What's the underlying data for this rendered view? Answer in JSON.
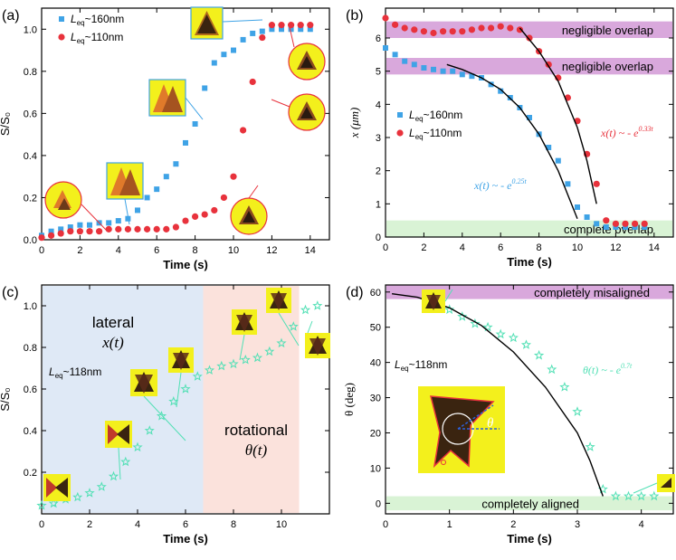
{
  "chart_data": [
    {
      "panel": "(a)",
      "type": "scatter",
      "xlabel": "Time (s)",
      "ylabel": "S/S0",
      "xlim": [
        0,
        15
      ],
      "ylim": [
        0,
        1.1
      ],
      "xticks": [
        0,
        2,
        4,
        6,
        8,
        10,
        12,
        14
      ],
      "yticks": [
        0.0,
        0.2,
        0.4,
        0.6,
        0.8,
        1.0
      ],
      "xtick_labels": [
        "0",
        "2",
        "4",
        "6",
        "8",
        "10",
        "12",
        "14"
      ],
      "ytick_labels": [
        "0.0",
        "0.2",
        "0.4",
        "0.6",
        "0.8",
        "1.0"
      ],
      "legend": [
        {
          "text": "L",
          "sub": "eq",
          "rest": "~160nm",
          "color": "#3fa3e6",
          "marker": "square"
        },
        {
          "text": "L",
          "sub": "eq",
          "rest": "~110nm",
          "color": "#e8323c",
          "marker": "circle"
        }
      ],
      "series": [
        {
          "name": "Leq~160nm",
          "color": "#3fa3e6",
          "marker": "square",
          "x": [
            0.0,
            0.5,
            1.0,
            1.5,
            2.0,
            2.5,
            3.0,
            3.5,
            4.0,
            4.5,
            5.0,
            5.5,
            6.0,
            6.5,
            7.0,
            7.5,
            8.0,
            8.5,
            9.0,
            9.5,
            10.0,
            10.5,
            11.0,
            11.5,
            12.0,
            12.5,
            13.0,
            13.5,
            14.0
          ],
          "y": [
            0.02,
            0.04,
            0.05,
            0.06,
            0.07,
            0.07,
            0.08,
            0.08,
            0.09,
            0.1,
            0.14,
            0.2,
            0.24,
            0.3,
            0.36,
            0.46,
            0.55,
            0.72,
            0.84,
            0.88,
            0.9,
            0.95,
            0.98,
            0.99,
            1.0,
            1.0,
            1.0,
            1.0,
            1.0
          ]
        },
        {
          "name": "Leq~110nm",
          "color": "#e8323c",
          "marker": "circle",
          "x": [
            0.0,
            0.5,
            1.0,
            1.5,
            2.0,
            2.5,
            3.0,
            3.5,
            4.0,
            4.5,
            5.0,
            5.5,
            6.0,
            6.5,
            7.0,
            7.5,
            8.0,
            8.5,
            9.0,
            9.5,
            10.0,
            10.5,
            11.0,
            11.5,
            12.0,
            12.5,
            13.0,
            13.5,
            14.0
          ],
          "y": [
            0.01,
            0.02,
            0.03,
            0.04,
            0.04,
            0.04,
            0.04,
            0.05,
            0.05,
            0.05,
            0.05,
            0.05,
            0.05,
            0.05,
            0.06,
            0.09,
            0.11,
            0.12,
            0.14,
            0.2,
            0.3,
            0.52,
            0.75,
            0.96,
            1.02,
            1.02,
            1.02,
            1.02,
            1.02
          ]
        }
      ]
    },
    {
      "panel": "(b)",
      "type": "scatter",
      "xlabel": "Time (s)",
      "ylabel": "x (μm)",
      "xlim": [
        0,
        15
      ],
      "ylim": [
        0,
        6.9
      ],
      "xticks": [
        0,
        2,
        4,
        6,
        8,
        10,
        12,
        14
      ],
      "yticks": [
        0,
        1,
        2,
        3,
        4,
        5,
        6
      ],
      "xtick_labels": [
        "0",
        "2",
        "4",
        "6",
        "8",
        "10",
        "12",
        "14"
      ],
      "ytick_labels": [
        "0",
        "1",
        "2",
        "3",
        "4",
        "5",
        "6"
      ],
      "bands": [
        {
          "label": "negligible overlap",
          "y0": 6.0,
          "y1": 6.5,
          "color": "#d9a8dc"
        },
        {
          "label": "negligible overlap",
          "y0": 4.9,
          "y1": 5.4,
          "color": "#d9a8dc"
        },
        {
          "label": "complete overlap",
          "y0": 0.0,
          "y1": 0.5,
          "color": "#d9f3d5"
        }
      ],
      "legend": [
        {
          "text": "L",
          "sub": "eq",
          "rest": "~160nm",
          "color": "#3fa3e6",
          "marker": "square"
        },
        {
          "text": "L",
          "sub": "eq",
          "rest": "~110nm",
          "color": "#e8323c",
          "marker": "circle"
        }
      ],
      "annotations": [
        {
          "text": "x(t) ~ - e",
          "sup": "0.25t",
          "color": "#3fa3e6"
        },
        {
          "text": "x(t) ~ - e",
          "sup": "0.33t",
          "color": "#e8323c"
        }
      ],
      "series": [
        {
          "name": "Leq~160nm",
          "color": "#3fa3e6",
          "marker": "square",
          "x": [
            0.0,
            0.5,
            1.0,
            1.5,
            2.0,
            2.5,
            3.0,
            3.5,
            4.0,
            4.5,
            5.0,
            5.5,
            6.0,
            6.5,
            7.0,
            7.5,
            8.0,
            8.5,
            9.0,
            9.5,
            10.0,
            10.5,
            11.0,
            11.5,
            12.0,
            12.5,
            13.0,
            13.5
          ],
          "y": [
            5.7,
            5.5,
            5.3,
            5.2,
            5.1,
            5.05,
            5.0,
            5.0,
            4.9,
            4.85,
            4.8,
            4.6,
            4.4,
            4.2,
            3.9,
            3.6,
            3.1,
            2.7,
            2.3,
            1.6,
            0.9,
            0.6,
            0.4,
            0.3,
            0.3,
            0.3,
            0.3,
            0.3
          ]
        },
        {
          "name": "Leq~110nm",
          "color": "#e8323c",
          "marker": "circle",
          "x": [
            0.0,
            0.5,
            1.0,
            1.5,
            2.0,
            2.5,
            3.0,
            3.5,
            4.0,
            4.5,
            5.0,
            5.5,
            6.0,
            6.5,
            7.0,
            7.5,
            8.0,
            8.5,
            9.0,
            9.5,
            10.0,
            10.5,
            11.0,
            11.5,
            12.0,
            12.5,
            13.0,
            13.5
          ],
          "y": [
            6.6,
            6.4,
            6.3,
            6.25,
            6.2,
            6.15,
            6.2,
            6.2,
            6.2,
            6.25,
            6.3,
            6.3,
            6.35,
            6.3,
            6.25,
            6.0,
            5.6,
            5.2,
            4.8,
            4.2,
            3.5,
            2.5,
            1.6,
            0.5,
            0.4,
            0.4,
            0.4,
            0.4
          ]
        },
        {
          "name": "fit 160nm",
          "type": "line",
          "color": "#000000",
          "x": [
            3.2,
            4.0,
            5.0,
            6.0,
            7.0,
            8.0,
            9.0,
            10.0
          ],
          "y": [
            5.2,
            5.05,
            4.8,
            4.45,
            3.9,
            3.1,
            2.0,
            0.55
          ]
        },
        {
          "name": "fit 110nm",
          "type": "line",
          "color": "#000000",
          "x": [
            7.0,
            8.0,
            9.0,
            10.0,
            10.5,
            11.0
          ],
          "y": [
            6.3,
            5.6,
            4.7,
            3.3,
            2.3,
            1.0
          ]
        }
      ]
    },
    {
      "panel": "(c)",
      "type": "scatter",
      "xlabel": "Time (s)",
      "ylabel": "S/S0",
      "xlim": [
        0,
        12
      ],
      "ylim": [
        0,
        1.1
      ],
      "xticks": [
        0,
        2,
        4,
        6,
        8,
        10
      ],
      "yticks": [
        0.2,
        0.4,
        0.6,
        0.8,
        1.0
      ],
      "xtick_labels": [
        "0",
        "2",
        "4",
        "6",
        "8",
        "10"
      ],
      "ytick_labels": [
        "0.2",
        "0.4",
        "0.6",
        "0.8",
        "1.0"
      ],
      "regions": [
        {
          "label": "lateral",
          "sublabel": "x(t)",
          "x0": 0.0,
          "x1": 6.7,
          "color": "#dfe9f6"
        },
        {
          "label": "rotational",
          "sublabel": "θ(t)",
          "x0": 6.7,
          "x1": 10.7,
          "color": "#fbe2dc"
        }
      ],
      "note": {
        "text": "L",
        "sub": "eq",
        "rest": "~118nm"
      },
      "series": [
        {
          "name": "Leq~118nm",
          "color": "#52e0b5",
          "marker": "star",
          "x": [
            0.0,
            0.5,
            1.0,
            1.5,
            2.0,
            2.5,
            3.0,
            3.5,
            4.0,
            4.5,
            5.0,
            5.5,
            6.0,
            6.5,
            7.0,
            7.5,
            8.0,
            8.5,
            9.0,
            9.5,
            10.0,
            10.5,
            11.0,
            11.5
          ],
          "y": [
            0.04,
            0.05,
            0.07,
            0.08,
            0.1,
            0.13,
            0.18,
            0.25,
            0.32,
            0.4,
            0.47,
            0.54,
            0.6,
            0.66,
            0.69,
            0.71,
            0.72,
            0.74,
            0.75,
            0.78,
            0.82,
            0.9,
            0.98,
            1.0
          ]
        }
      ]
    },
    {
      "panel": "(d)",
      "type": "scatter",
      "xlabel": "Time (s)",
      "ylabel": "θ (deg)",
      "xlim": [
        0,
        4.5
      ],
      "ylim": [
        -3,
        62
      ],
      "xticks": [
        0,
        1,
        2,
        3,
        4
      ],
      "yticks": [
        0,
        10,
        20,
        30,
        40,
        50,
        60
      ],
      "xtick_labels": [
        "0",
        "1",
        "2",
        "3",
        "4"
      ],
      "ytick_labels": [
        "0",
        "10",
        "20",
        "30",
        "40",
        "50",
        "60"
      ],
      "bands": [
        {
          "label": "completely misaligned",
          "y0": 58,
          "y1": 62,
          "color": "#d9a8dc"
        },
        {
          "label": "completely aligned",
          "y0": -2,
          "y1": 2,
          "color": "#d9f3d5"
        }
      ],
      "note": {
        "text": "L",
        "sub": "eq",
        "rest": "~118nm"
      },
      "annotation": {
        "text": "θ(t) ~ - e",
        "sup": "0.7t",
        "color": "#52e0b5"
      },
      "inset_symbol": "θ",
      "series": [
        {
          "name": "Leq~118nm",
          "color": "#52e0b5",
          "marker": "star",
          "x": [
            0.8,
            1.0,
            1.2,
            1.4,
            1.6,
            1.8,
            2.0,
            2.2,
            2.4,
            2.6,
            2.8,
            3.0,
            3.2,
            3.4,
            3.6,
            3.8,
            4.0,
            4.2
          ],
          "y": [
            57,
            55,
            53,
            51,
            50,
            48,
            47,
            45,
            42,
            38,
            33,
            26,
            16,
            4,
            2,
            2,
            2,
            2
          ]
        },
        {
          "name": "fit",
          "type": "line",
          "color": "#000000",
          "x": [
            0.1,
            0.5,
            1.0,
            1.5,
            2.0,
            2.5,
            3.0,
            3.2,
            3.4
          ],
          "y": [
            59.5,
            58.5,
            55.5,
            50.5,
            43,
            33,
            20,
            12,
            2
          ]
        }
      ]
    }
  ]
}
